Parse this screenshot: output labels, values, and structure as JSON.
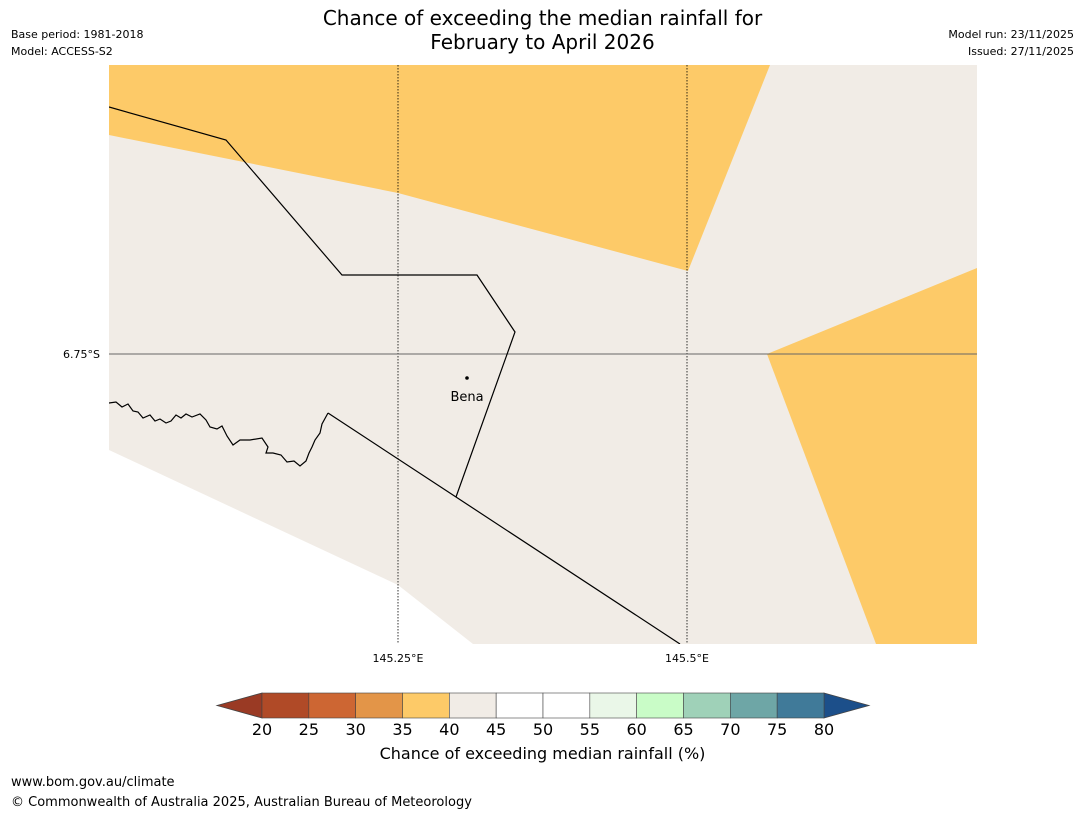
{
  "title": {
    "line1": "Chance of exceeding the median rainfall for",
    "line2": "February to April 2026"
  },
  "meta_left": {
    "base_period": "Base period: 1981-2018",
    "model": "Model: ACCESS-S2"
  },
  "meta_right": {
    "model_run": "Model run: 23/11/2025",
    "issued": "Issued: 27/11/2025"
  },
  "map": {
    "lat_label": "6.75°S",
    "lon_labels": [
      "145.25°E",
      "145.5°E"
    ],
    "place": "Bena"
  },
  "colorbar": {
    "label": "Chance of exceeding median rainfall (%)",
    "ticks": [
      "20",
      "25",
      "30",
      "35",
      "40",
      "45",
      "50",
      "55",
      "60",
      "65",
      "70",
      "75",
      "80"
    ],
    "low_extend_color": "#9a3a24",
    "high_extend_color": "#1c4f8a",
    "colors": [
      "#b04a27",
      "#cd6633",
      "#e39548",
      "#fdca68",
      "#f1ece6",
      "#ffffff",
      "#ffffff",
      "#eaf7e8",
      "#c9fcc7",
      "#9fd1b8",
      "#6ea6a6",
      "#407a99"
    ]
  },
  "palette": {
    "orange": "#fdca68",
    "neutral": "#f1ece6"
  },
  "footer": {
    "url": "www.bom.gov.au/climate",
    "copyright": "© Commonwealth of Australia 2025, Australian Bureau of Meteorology"
  }
}
